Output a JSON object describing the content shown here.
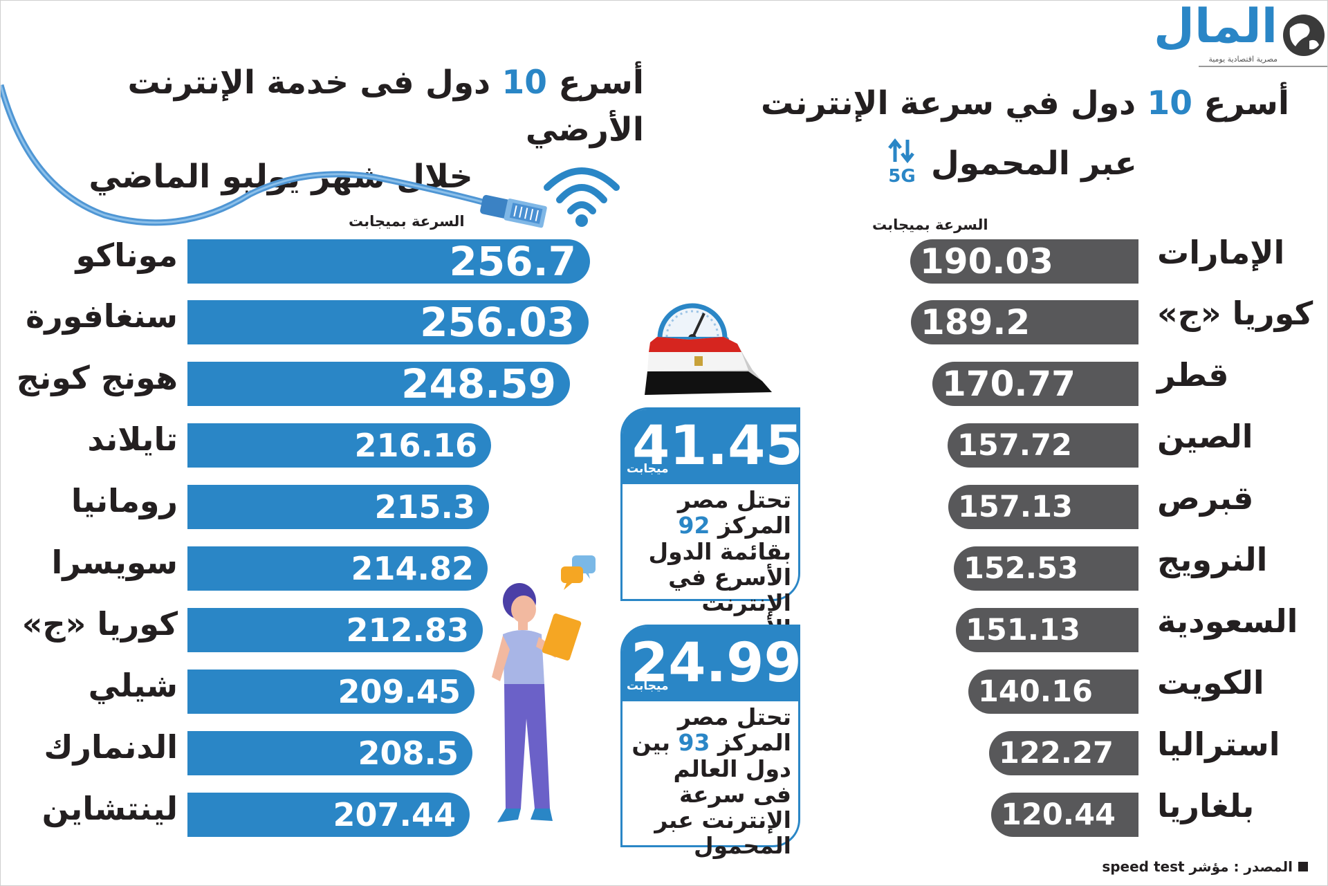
{
  "logo": {
    "text": "المال",
    "subtitle": "مصرية اقتصادية يومية"
  },
  "chart_data": [
    {
      "type": "bar",
      "orientation": "horizontal",
      "title": "أسرع 10 دول في سرعة الإنترنت عبر المحمول",
      "title_parts": {
        "pre": "أسرع ",
        "num": "10",
        "post": " دول في سرعة الإنترنت",
        "line2": "عبر المحمول"
      },
      "badge": "5G",
      "unit_label": "السرعة بميجابت",
      "categories": [
        "الإمارات",
        "كوريا «ج»",
        "قطر",
        "الصين",
        "قبرص",
        "النرويج",
        "السعودية",
        "الكويت",
        "استراليا",
        "بلغاريا"
      ],
      "values": [
        190.03,
        189.2,
        170.77,
        157.72,
        157.13,
        152.53,
        151.13,
        140.16,
        122.27,
        120.44
      ],
      "value_labels": [
        "190.03",
        "189.2",
        "170.77",
        "157.72",
        "157.13",
        "152.53",
        "151.13",
        "140.16",
        "122.27",
        "120.44"
      ],
      "color": "#58585a"
    },
    {
      "type": "bar",
      "orientation": "horizontal",
      "title": "أسرع 10 دول فى خدمة الإنترنت الأرضي خلال شهر يوليو الماضي",
      "title_parts": {
        "pre": "أسرع ",
        "num": "10",
        "post": " دول فى خدمة الإنترنت الأرضي",
        "line2": "خلال شهر يوليو الماضي"
      },
      "unit_label": "السرعة بميجابت",
      "categories": [
        "موناكو",
        "سنغافورة",
        "هونج كونج",
        "تايلاند",
        "رومانيا",
        "سويسرا",
        "كوريا «ج»",
        "شيلي",
        "الدنمارك",
        "لينتشاين"
      ],
      "values": [
        256.7,
        256.03,
        248.59,
        216.16,
        215.3,
        214.82,
        212.83,
        209.45,
        208.5,
        207.44
      ],
      "value_labels": [
        "256.7",
        "256.03",
        "248.59",
        "216.16",
        "215.3",
        "214.82",
        "212.83",
        "209.45",
        "208.5",
        "207.44"
      ],
      "color": "#2a86c6"
    }
  ],
  "callouts": [
    {
      "value": "41.45",
      "unit": "ميجابت",
      "rank": "92",
      "text_before": "تحتل مصر المركز",
      "text_after": "بقائمة الدول الأسرع في الإنترنت الأرضي"
    },
    {
      "value": "24.99",
      "unit": "ميجابت",
      "rank": "93",
      "text_before": "تحتل مصر المركز",
      "text_after": "بين دول العالم فى سرعة الإنترنت عبر المحمول"
    }
  ],
  "source": "المصدر : مؤشر speed test",
  "colors": {
    "blue": "#2a86c6",
    "gray": "#58585a",
    "text": "#231f20"
  },
  "icons": [
    "globe-logo-icon",
    "ethernet-cable-icon",
    "wifi-icon",
    "speedometer-icon",
    "egypt-flag-map-icon",
    "person-tablet-icon",
    "chat-bubbles-icon",
    "arrows-updown-icon"
  ]
}
